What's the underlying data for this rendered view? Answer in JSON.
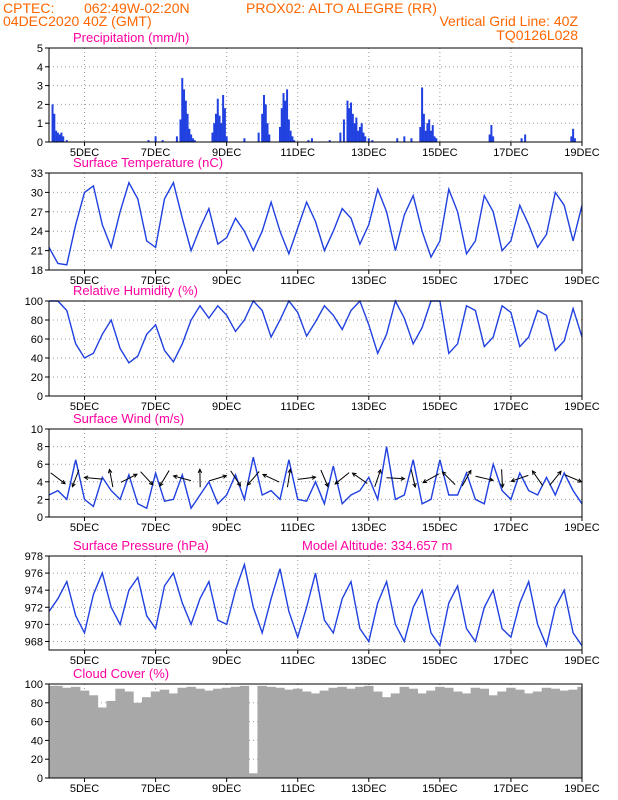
{
  "header": {
    "line1_left": "CPTEC:",
    "line1_coords": "062:49W-02:20N",
    "line1_station": "PROX02: ALTO ALEGRE (RR)",
    "line2_left": "04DEC2020 40Z (GMT)",
    "line2_right": "Vertical Grid Line: 40Z",
    "line3_right": "TQ0126L028"
  },
  "colors": {
    "header": "#ff6600",
    "title": "#ff00a0",
    "series": "#2040e0",
    "cloud": "#a8a8a8",
    "arrow": "#000000"
  },
  "x_ticks": [
    "5DEC",
    "7DEC",
    "9DEC",
    "11DEC",
    "13DEC",
    "15DEC",
    "17DEC",
    "19DEC"
  ],
  "chart_data": [
    {
      "type": "bar",
      "title": "Precipitation (mm/h)",
      "ylim": [
        0,
        5
      ],
      "yticks": [
        0,
        1,
        2,
        3,
        4,
        5
      ],
      "x": [
        4.1,
        4.15,
        4.2,
        4.25,
        4.3,
        4.35,
        4.4,
        4.5,
        6.8,
        7.0,
        7.2,
        7.6,
        7.7,
        7.75,
        7.8,
        7.85,
        7.9,
        7.95,
        8.0,
        8.05,
        8.1,
        8.6,
        8.65,
        8.7,
        8.75,
        8.8,
        8.85,
        8.9,
        8.95,
        9.0,
        9.5,
        9.9,
        10.0,
        10.05,
        10.1,
        10.15,
        10.2,
        10.5,
        10.55,
        10.6,
        10.65,
        10.7,
        10.75,
        10.8,
        10.85,
        10.9,
        11.3,
        11.4,
        11.9,
        12.2,
        12.3,
        12.4,
        12.45,
        12.5,
        12.55,
        12.6,
        12.65,
        12.7,
        12.75,
        12.8,
        12.85,
        12.9,
        13.0,
        13.1,
        13.8,
        14.0,
        14.2,
        14.45,
        14.5,
        14.55,
        14.6,
        14.65,
        14.7,
        14.75,
        14.8,
        14.85,
        14.9,
        16.4,
        16.45,
        16.5,
        17.3,
        17.4,
        18.7,
        18.75,
        18.8
      ],
      "values": [
        2.0,
        1.5,
        0.6,
        0.5,
        0.4,
        0.5,
        0.3,
        0.1,
        0.1,
        0.3,
        0.1,
        0.3,
        1.2,
        3.4,
        2.8,
        2.2,
        1.5,
        0.7,
        0.4,
        0.2,
        0.1,
        0.5,
        1.0,
        1.5,
        2.3,
        1.4,
        1.0,
        2.5,
        1.8,
        0.3,
        0.2,
        0.5,
        1.5,
        2.5,
        2.0,
        1.0,
        0.4,
        0.8,
        1.8,
        2.6,
        2.2,
        2.8,
        1.2,
        0.6,
        0.3,
        0.1,
        0.1,
        0.2,
        0.1,
        0.5,
        1.2,
        2.2,
        1.8,
        2.1,
        1.5,
        1.0,
        1.3,
        0.6,
        0.8,
        1.0,
        0.5,
        0.3,
        0.2,
        0.1,
        0.2,
        0.3,
        0.2,
        0.8,
        2.9,
        1.5,
        0.6,
        1.0,
        1.2,
        0.6,
        0.9,
        0.3,
        0.2,
        0.4,
        0.9,
        0.3,
        0.2,
        0.4,
        0.3,
        0.7,
        0.2
      ]
    },
    {
      "type": "line",
      "title": "Surface Temperature (nC)",
      "ylim": [
        18,
        33
      ],
      "yticks": [
        18,
        21,
        24,
        27,
        30,
        33
      ],
      "x": [
        4.0,
        4.25,
        4.5,
        4.75,
        5.0,
        5.25,
        5.5,
        5.75,
        6.0,
        6.25,
        6.5,
        6.75,
        7.0,
        7.25,
        7.5,
        7.75,
        8.0,
        8.25,
        8.5,
        8.75,
        9.0,
        9.25,
        9.5,
        9.75,
        10.0,
        10.25,
        10.5,
        10.75,
        11.0,
        11.25,
        11.5,
        11.75,
        12.0,
        12.25,
        12.5,
        12.75,
        13.0,
        13.25,
        13.5,
        13.75,
        14.0,
        14.25,
        14.5,
        14.75,
        15.0,
        15.25,
        15.5,
        15.75,
        16.0,
        16.25,
        16.5,
        16.75,
        17.0,
        17.25,
        17.5,
        17.75,
        18.0,
        18.25,
        18.5,
        18.75,
        19.0
      ],
      "values": [
        21.5,
        19.0,
        18.8,
        25.0,
        30.0,
        31.0,
        25.0,
        21.5,
        27.0,
        31.5,
        29.0,
        22.5,
        21.5,
        29.0,
        31.5,
        26.0,
        21.0,
        24.5,
        27.5,
        22.0,
        23.0,
        26.0,
        24.0,
        21.0,
        24.0,
        28.5,
        24.0,
        20.5,
        24.5,
        28.5,
        25.5,
        21.0,
        24.0,
        27.5,
        26.0,
        22.0,
        25.0,
        30.5,
        27.0,
        21.0,
        26.5,
        29.5,
        24.0,
        20.0,
        22.5,
        30.5,
        27.0,
        20.5,
        22.5,
        29.5,
        27.0,
        21.0,
        22.5,
        28.0,
        25.0,
        21.5,
        23.5,
        30.0,
        28.0,
        22.5,
        28.0
      ]
    },
    {
      "type": "line",
      "title": "Relative Humidity (%)",
      "ylim": [
        0,
        100
      ],
      "yticks": [
        0,
        20,
        40,
        60,
        80,
        100
      ],
      "x": [
        4.0,
        4.25,
        4.5,
        4.75,
        5.0,
        5.25,
        5.5,
        5.75,
        6.0,
        6.25,
        6.5,
        6.75,
        7.0,
        7.25,
        7.5,
        7.75,
        8.0,
        8.25,
        8.5,
        8.75,
        9.0,
        9.25,
        9.5,
        9.75,
        10.0,
        10.25,
        10.5,
        10.75,
        11.0,
        11.25,
        11.5,
        11.75,
        12.0,
        12.25,
        12.5,
        12.75,
        13.0,
        13.25,
        13.5,
        13.75,
        14.0,
        14.25,
        14.5,
        14.75,
        15.0,
        15.25,
        15.5,
        15.75,
        16.0,
        16.25,
        16.5,
        16.75,
        17.0,
        17.25,
        17.5,
        17.75,
        18.0,
        18.25,
        18.5,
        18.75,
        19.0
      ],
      "values": [
        100,
        100,
        90,
        55,
        40,
        45,
        65,
        80,
        50,
        35,
        42,
        65,
        75,
        48,
        36,
        55,
        80,
        95,
        82,
        95,
        85,
        68,
        80,
        100,
        90,
        62,
        80,
        100,
        88,
        63,
        78,
        95,
        85,
        70,
        90,
        100,
        75,
        45,
        65,
        100,
        82,
        55,
        72,
        100,
        100,
        45,
        55,
        95,
        90,
        52,
        62,
        95,
        88,
        52,
        62,
        90,
        85,
        48,
        58,
        92,
        62
      ]
    },
    {
      "type": "line",
      "title": "Surface Wind (m/s)",
      "ylim": [
        0,
        10
      ],
      "yticks": [
        0,
        2,
        4,
        6,
        8,
        10
      ],
      "x": [
        4.0,
        4.25,
        4.5,
        4.75,
        5.0,
        5.25,
        5.5,
        5.75,
        6.0,
        6.25,
        6.5,
        6.75,
        7.0,
        7.25,
        7.5,
        7.75,
        8.0,
        8.25,
        8.5,
        8.75,
        9.0,
        9.25,
        9.5,
        9.75,
        10.0,
        10.25,
        10.5,
        10.75,
        11.0,
        11.25,
        11.5,
        11.75,
        12.0,
        12.25,
        12.5,
        12.75,
        13.0,
        13.25,
        13.5,
        13.75,
        14.0,
        14.25,
        14.5,
        14.75,
        15.0,
        15.25,
        15.5,
        15.75,
        16.0,
        16.25,
        16.5,
        16.75,
        17.0,
        17.25,
        17.5,
        17.75,
        18.0,
        18.25,
        18.5,
        18.75,
        19.0
      ],
      "values": [
        2.5,
        3.0,
        2.0,
        6.5,
        2.0,
        1.2,
        4.5,
        3.0,
        2.0,
        4.8,
        1.5,
        1.0,
        5.0,
        1.8,
        2.0,
        4.8,
        1.0,
        2.5,
        4.0,
        1.5,
        2.5,
        4.8,
        2.0,
        6.8,
        2.5,
        3.0,
        2.0,
        6.5,
        2.0,
        1.8,
        4.0,
        1.5,
        5.8,
        1.5,
        2.5,
        3.0,
        4.5,
        2.0,
        8.0,
        2.0,
        2.5,
        6.5,
        1.5,
        2.0,
        6.5,
        2.5,
        2.5,
        5.0,
        2.0,
        1.5,
        6.0,
        3.0,
        2.0,
        5.0,
        3.0,
        2.5,
        4.5,
        2.5,
        5.0,
        3.0,
        1.5
      ]
    },
    {
      "type": "line",
      "title": "Surface Pressure (hPa)",
      "annotation": "Model Altitude: 334.657 m",
      "ylim": [
        967,
        978
      ],
      "yticks": [
        968,
        970,
        972,
        974,
        976,
        978
      ],
      "x": [
        4.0,
        4.25,
        4.5,
        4.75,
        5.0,
        5.25,
        5.5,
        5.75,
        6.0,
        6.25,
        6.5,
        6.75,
        7.0,
        7.25,
        7.5,
        7.75,
        8.0,
        8.25,
        8.5,
        8.75,
        9.0,
        9.25,
        9.5,
        9.75,
        10.0,
        10.25,
        10.5,
        10.75,
        11.0,
        11.25,
        11.5,
        11.75,
        12.0,
        12.25,
        12.5,
        12.75,
        13.0,
        13.25,
        13.5,
        13.75,
        14.0,
        14.25,
        14.5,
        14.75,
        15.0,
        15.25,
        15.5,
        15.75,
        16.0,
        16.25,
        16.5,
        16.75,
        17.0,
        17.25,
        17.5,
        17.75,
        18.0,
        18.25,
        18.5,
        18.75,
        19.0
      ],
      "values": [
        971.5,
        973.0,
        975.0,
        971.0,
        969.0,
        973.5,
        976.0,
        972.0,
        970.0,
        974.0,
        975.5,
        971.0,
        969.5,
        974.5,
        976.0,
        972.5,
        970.0,
        973.0,
        975.0,
        970.5,
        970.0,
        974.0,
        977.0,
        972.0,
        969.0,
        973.0,
        976.5,
        971.5,
        968.5,
        972.0,
        976.0,
        970.5,
        969.0,
        973.0,
        975.0,
        969.5,
        968.0,
        972.5,
        975.0,
        970.0,
        968.0,
        972.0,
        974.0,
        969.0,
        967.5,
        972.5,
        974.5,
        969.5,
        968.0,
        972.0,
        974.0,
        969.5,
        968.5,
        972.5,
        975.0,
        970.0,
        967.5,
        972.0,
        974.0,
        969.0,
        967.5
      ]
    },
    {
      "type": "bar",
      "title": "Cloud Cover (%)",
      "ylim": [
        0,
        100
      ],
      "yticks": [
        0,
        20,
        40,
        60,
        80,
        100
      ],
      "x": [
        4.0,
        4.25,
        4.5,
        4.75,
        5.0,
        5.25,
        5.5,
        5.75,
        6.0,
        6.25,
        6.5,
        6.75,
        7.0,
        7.25,
        7.5,
        7.75,
        8.0,
        8.25,
        8.5,
        8.75,
        9.0,
        9.25,
        9.5,
        9.75,
        10.0,
        10.25,
        10.5,
        10.75,
        11.0,
        11.25,
        11.5,
        11.75,
        12.0,
        12.25,
        12.5,
        12.75,
        13.0,
        13.25,
        13.5,
        13.75,
        14.0,
        14.25,
        14.5,
        14.75,
        15.0,
        15.25,
        15.5,
        15.75,
        16.0,
        16.25,
        16.5,
        16.75,
        17.0,
        17.25,
        17.5,
        17.75,
        18.0,
        18.25,
        18.5,
        18.75,
        19.0
      ],
      "values": [
        98,
        98,
        96,
        97,
        93,
        88,
        75,
        82,
        95,
        92,
        80,
        86,
        92,
        94,
        90,
        96,
        97,
        95,
        93,
        95,
        96,
        97,
        98,
        5,
        98,
        97,
        96,
        94,
        95,
        92,
        90,
        93,
        96,
        97,
        95,
        97,
        98,
        92,
        86,
        90,
        97,
        95,
        90,
        93,
        97,
        96,
        92,
        90,
        96,
        95,
        88,
        92,
        96,
        94,
        90,
        92,
        96,
        95,
        93,
        94,
        97
      ]
    }
  ]
}
